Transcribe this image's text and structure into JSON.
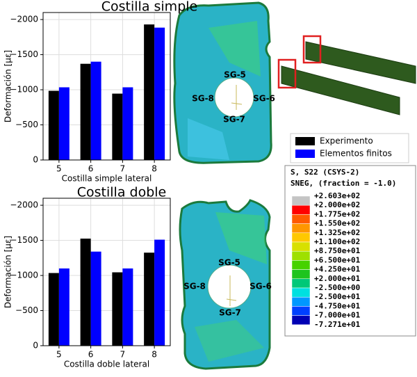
{
  "chart_data": [
    {
      "type": "bar",
      "title": "Costilla simple",
      "x_label": "Costilla simple lateral",
      "y_label": "Deformación [με]",
      "categories": [
        "5",
        "6",
        "7",
        "8"
      ],
      "series": [
        {
          "name": "Experimento",
          "color": "#000000",
          "values": [
            -985,
            -1370,
            -945,
            -1930
          ]
        },
        {
          "name": "Elementos finitos",
          "color": "#0000ff",
          "values": [
            -1035,
            -1400,
            -1035,
            -1885
          ]
        }
      ],
      "ylim": [
        0,
        -2100
      ],
      "yticks": [
        0,
        {
          "value": -500,
          "label": "−500"
        },
        {
          "value": -1000,
          "label": "−1000"
        },
        {
          "value": -1500,
          "label": "−1500"
        },
        {
          "value": -2000,
          "label": "−2000"
        }
      ],
      "grid": true
    },
    {
      "type": "bar",
      "title": "Costilla doble",
      "x_label": "Costilla doble lateral",
      "y_label": "Deformación [με]",
      "categories": [
        "5",
        "6",
        "7",
        "8"
      ],
      "series": [
        {
          "color": "#000000",
          "values": [
            -1035,
            -1525,
            -1045,
            -1325
          ]
        },
        {
          "color": "#0000ff",
          "values": [
            -1100,
            -1340,
            -1100,
            -1510
          ]
        }
      ],
      "ylim": [
        0,
        -2100
      ],
      "yticks": [
        0,
        {
          "value": -500,
          "label": "−500"
        },
        {
          "value": -1000,
          "label": "−1000"
        },
        {
          "value": -1500,
          "label": "−1500"
        },
        {
          "value": -2000,
          "label": "−2000"
        }
      ],
      "grid": true
    }
  ],
  "fea": {
    "top_labels": [
      "SG-5",
      "SG-8",
      "SG-6",
      "SG-7"
    ],
    "bottom_labels": [
      "SG-5",
      "SG-8",
      "SG-6",
      "SG-7"
    ]
  },
  "colorbar": {
    "title": "S, S22 (CSYS-2)",
    "subtitle": "SNEG, (fraction = -1.0)",
    "labels": [
      "+2.603e+02",
      "+2.000e+02",
      "+1.775e+02",
      "+1.550e+02",
      "+1.325e+02",
      "+1.100e+02",
      "+8.750e+01",
      "+6.500e+01",
      "+4.250e+01",
      "+2.000e+01",
      "-2.500e+00",
      "-2.500e+01",
      "-4.750e+01",
      "-7.000e+01",
      "-7.271e+01"
    ],
    "colors": [
      "#c4c4c4",
      "#ff0000",
      "#ff5a00",
      "#ff9600",
      "#ffc800",
      "#d8e000",
      "#9ee000",
      "#46d200",
      "#1ec41e",
      "#00c878",
      "#00e0e0",
      "#0098ff",
      "#0040ff",
      "#0000b4"
    ]
  }
}
